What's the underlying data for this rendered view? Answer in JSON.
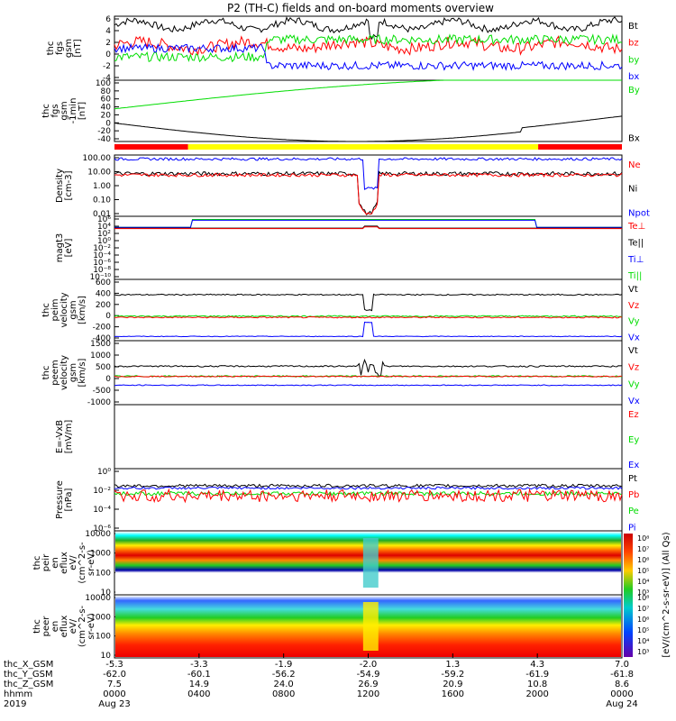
{
  "title": "P2 (TH-C) fields and on-board moments overview",
  "colors": {
    "black": "#000000",
    "red": "#ff0000",
    "green": "#00dd00",
    "blue": "#0000ff",
    "yellow": "#ffff00"
  },
  "chart_data": [
    {
      "type": "line",
      "ylabel": [
        "thc",
        "fgs",
        "gsm",
        "[nT]"
      ],
      "yticks": [
        "6",
        "4",
        "2",
        "0",
        "-2",
        "-4"
      ],
      "legend": [
        {
          "name": "Bt",
          "color": "black"
        },
        {
          "name": "bz",
          "color": "red"
        },
        {
          "name": "by",
          "color": "green"
        },
        {
          "name": "bx",
          "color": "blue"
        }
      ]
    },
    {
      "type": "line",
      "ylabel": [
        "thc",
        "fgs",
        "gsm",
        "-1min",
        "[nT]"
      ],
      "yticks": [
        "100",
        "80",
        "60",
        "40",
        "20",
        "0",
        "-20",
        "-40"
      ],
      "legend": [
        {
          "name": "By",
          "color": "green"
        },
        {
          "name": "Bx",
          "color": "black"
        }
      ]
    },
    {
      "type": "line",
      "ylabel": [
        "Density",
        "[cm-3]"
      ],
      "yticks": [
        "100.00",
        "10.00",
        "1.00",
        "0.10",
        "0.01"
      ],
      "legend": [
        {
          "name": "Ne",
          "color": "red"
        },
        {
          "name": "Ni",
          "color": "black"
        },
        {
          "name": "Npot",
          "color": "blue"
        }
      ]
    },
    {
      "type": "line",
      "ylabel": [
        "magt3",
        "[eV]"
      ],
      "yticks": [
        "10⁶",
        "10⁴",
        "10²",
        "10⁰",
        "10⁻²",
        "10⁻⁴",
        "10⁻⁶",
        "10⁻⁸",
        "10⁻¹⁰"
      ],
      "legend": [
        {
          "name": "Te⊥",
          "color": "red"
        },
        {
          "name": "Te||",
          "color": "black"
        },
        {
          "name": "Ti⊥",
          "color": "blue"
        },
        {
          "name": "Ti||",
          "color": "green"
        }
      ]
    },
    {
      "type": "line",
      "ylabel": [
        "thc",
        "peim",
        "velocity",
        "gsm",
        "[km/s]"
      ],
      "yticks": [
        "600",
        "400",
        "200",
        "0",
        "-200",
        "-400"
      ],
      "legend": [
        {
          "name": "Vt",
          "color": "black"
        },
        {
          "name": "Vz",
          "color": "red"
        },
        {
          "name": "Vy",
          "color": "green"
        },
        {
          "name": "Vx",
          "color": "blue"
        }
      ]
    },
    {
      "type": "line",
      "ylabel": [
        "thc",
        "peem",
        "velocity",
        "gsm",
        "[km/s]"
      ],
      "yticks": [
        "1500",
        "1000",
        "500",
        "0",
        "-500",
        "-1000"
      ],
      "legend": [
        {
          "name": "Vt",
          "color": "black"
        },
        {
          "name": "Vz",
          "color": "red"
        },
        {
          "name": "Vy",
          "color": "green"
        },
        {
          "name": "Vx",
          "color": "blue"
        }
      ]
    },
    {
      "type": "line",
      "ylabel": [
        "E=-VxB",
        "[mV/m]"
      ],
      "yticks": [],
      "legend": [
        {
          "name": "Ez",
          "color": "red"
        },
        {
          "name": "Ey",
          "color": "green"
        },
        {
          "name": "Ex",
          "color": "blue"
        }
      ]
    },
    {
      "type": "line",
      "ylabel": [
        "Pressure",
        "[nPa]"
      ],
      "yticks": [
        "10⁰",
        "10⁻²",
        "10⁻⁴",
        "10⁻⁶"
      ],
      "legend": [
        {
          "name": "Pt",
          "color": "black"
        },
        {
          "name": "Pb",
          "color": "red"
        },
        {
          "name": "Pe",
          "color": "green"
        },
        {
          "name": "Pi",
          "color": "blue"
        }
      ]
    },
    {
      "type": "heatmap",
      "ylabel": [
        "thc",
        "peir",
        "en",
        "eflux",
        "eV/",
        "(cm^2-s-",
        "sr-eV)"
      ],
      "yticks": [
        "10000",
        "1000",
        "100",
        "10"
      ],
      "legend": []
    },
    {
      "type": "heatmap",
      "ylabel": [
        "thc",
        "peer",
        "en",
        "eflux",
        "eV/",
        "(cm^2-s-",
        "sr-eV)"
      ],
      "yticks": [
        "10000",
        "1000",
        "100",
        "10"
      ],
      "legend": []
    }
  ],
  "colorbar": {
    "label": "[eV/(cm^2-s-sr-eV)] (All Qs)",
    "top_ticks": [
      "10⁸",
      "10⁷",
      "10⁶",
      "10⁵",
      "10⁴",
      "10³"
    ],
    "bottom_ticks": [
      "10⁸",
      "10⁷",
      "10⁶",
      "10⁵",
      "10⁴",
      "10³"
    ]
  },
  "x_axis": {
    "row_labels": [
      "thc_X_GSM",
      "thc_Y_GSM",
      "thc_Z_GSM",
      "hhmm",
      "2019"
    ],
    "ticks": [
      {
        "x": "-5.3",
        "y": "-62.0",
        "z": "7.5",
        "hhmm": "0000",
        "date": "Aug 23"
      },
      {
        "x": "-3.3",
        "y": "-60.1",
        "z": "14.9",
        "hhmm": "0400",
        "date": ""
      },
      {
        "x": "-1.9",
        "y": "-56.2",
        "z": "24.0",
        "hhmm": "0800",
        "date": ""
      },
      {
        "x": "-2.0",
        "y": "-54.9",
        "z": "26.9",
        "hhmm": "1200",
        "date": ""
      },
      {
        "x": "1.3",
        "y": "-59.2",
        "z": "20.9",
        "hhmm": "1600",
        "date": ""
      },
      {
        "x": "4.3",
        "y": "-61.9",
        "z": "10.8",
        "hhmm": "2000",
        "date": ""
      },
      {
        "x": "7.0",
        "y": "-61.8",
        "z": "8.6",
        "hhmm": "0000",
        "date": "Aug 24"
      }
    ]
  }
}
